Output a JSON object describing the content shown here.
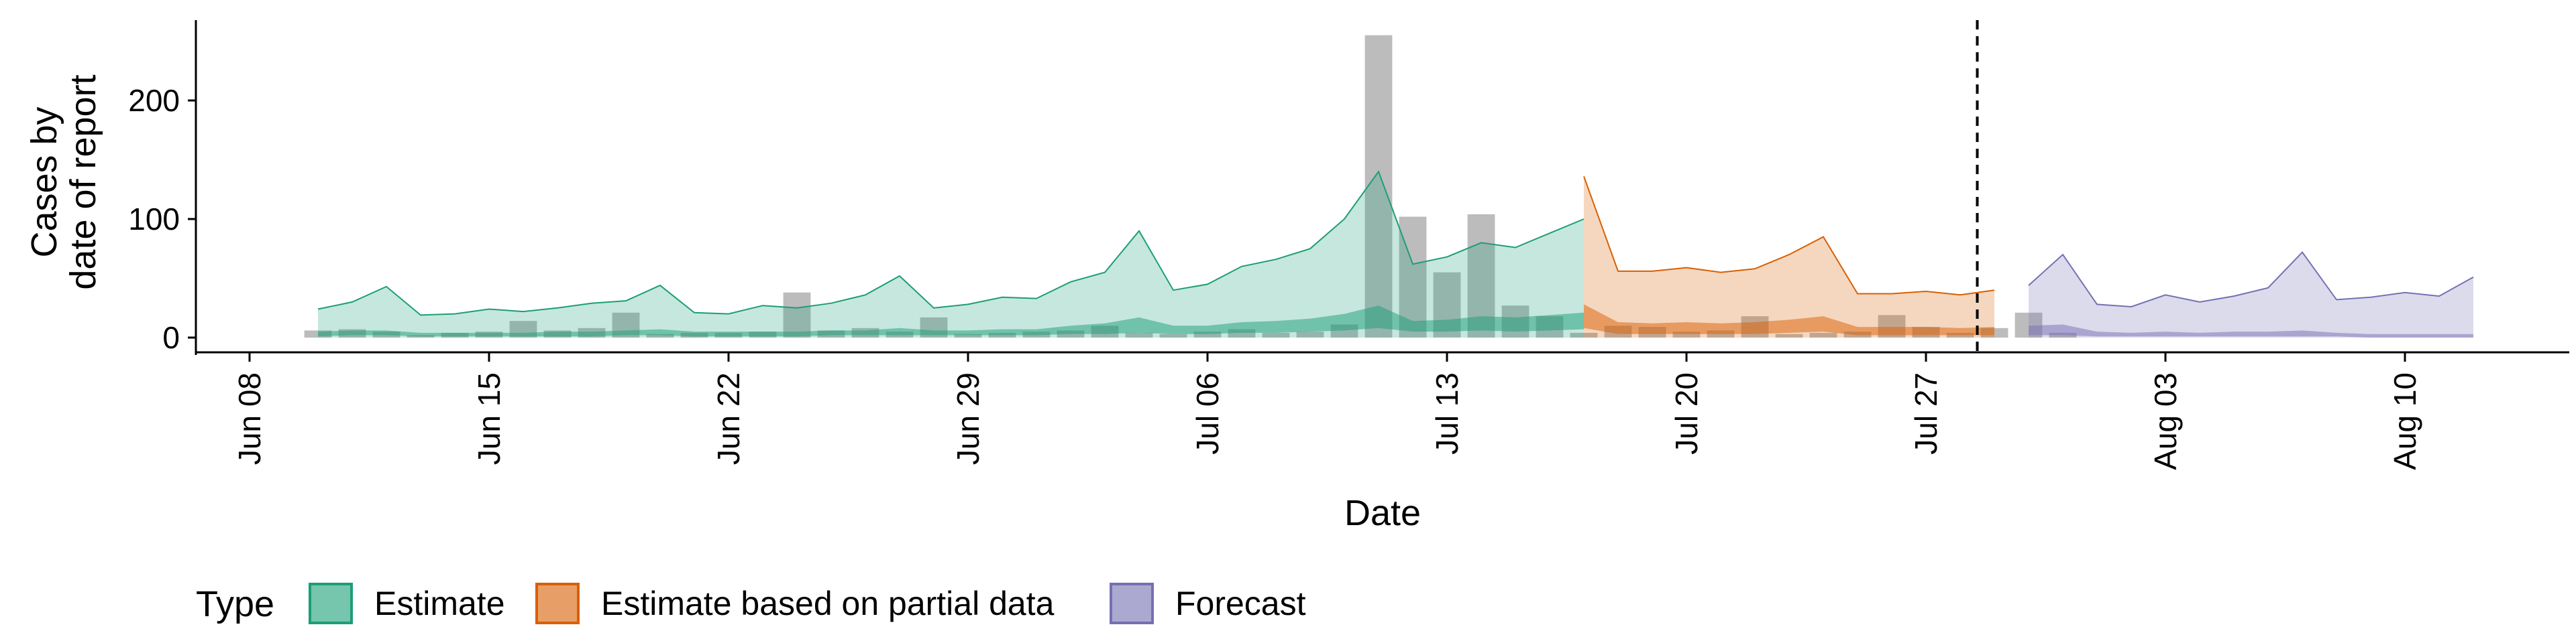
{
  "chart_data": {
    "type": "area",
    "title": "",
    "xlabel": "Date",
    "ylabel_lines": [
      "Cases by",
      "date of report"
    ],
    "ylim": [
      -12,
      270
    ],
    "xlim": [
      "2021-06-06",
      "2021-08-15"
    ],
    "x_ticks": [
      "Jun 08",
      "Jun 15",
      "Jun 22",
      "Jun 29",
      "Jul 06",
      "Jul 13",
      "Jul 20",
      "Jul 27",
      "Aug 03",
      "Aug 10"
    ],
    "x_tick_dates": [
      "2021-06-08",
      "2021-06-15",
      "2021-06-22",
      "2021-06-29",
      "2021-07-06",
      "2021-07-13",
      "2021-07-20",
      "2021-07-27",
      "2021-08-03",
      "2021-08-10"
    ],
    "y_ticks": [
      0,
      100,
      200
    ],
    "grid": false,
    "forecast_date": "2021-07-29",
    "legend": {
      "title": "Type",
      "position": "bottom",
      "entries": [
        "Estimate",
        "Estimate based on partial data",
        "Forecast"
      ]
    },
    "colors": {
      "estimate_line": "#1B9E77",
      "estimate_fill": "#1B9E77",
      "partial_line": "#D95F02",
      "partial_fill": "#D95F02",
      "forecast_line": "#7570B3",
      "forecast_fill": "#7570B3",
      "bars": "#a0a0a0",
      "forecast_marker": "#000000"
    },
    "reported_cases": {
      "start": "2021-06-10",
      "values": [
        6,
        7,
        5,
        2,
        4,
        5,
        14,
        6,
        8,
        21,
        3,
        4,
        4,
        5,
        38,
        6,
        8,
        5,
        17,
        3,
        4,
        5,
        6,
        10,
        4,
        3,
        5,
        7,
        4,
        5,
        11,
        255,
        102,
        55,
        104,
        27,
        18,
        4,
        10,
        9,
        5,
        6,
        18,
        3,
        4,
        5,
        19,
        9,
        4,
        8,
        21,
        4
      ]
    },
    "series": [
      {
        "name": "Estimate",
        "start": "2021-06-10",
        "outer_upper": [
          24,
          30,
          43,
          19,
          20,
          24,
          22,
          25,
          29,
          31,
          44,
          21,
          20,
          27,
          25,
          29,
          36,
          52,
          25,
          28,
          34,
          33,
          47,
          55,
          90,
          40,
          45,
          60,
          66,
          75,
          100,
          140,
          62,
          68,
          80,
          76,
          88,
          100
        ],
        "inner_upper": [
          5,
          6,
          6,
          4,
          4,
          4,
          4,
          5,
          5,
          6,
          7,
          5,
          5,
          5,
          5,
          6,
          6,
          8,
          6,
          6,
          7,
          7,
          10,
          12,
          17,
          10,
          10,
          13,
          14,
          16,
          20,
          27,
          14,
          15,
          18,
          17,
          19,
          21
        ],
        "inner_lower": [
          1,
          2,
          2,
          1,
          1,
          1,
          1,
          1,
          1,
          2,
          2,
          1,
          1,
          1,
          1,
          2,
          2,
          2,
          2,
          2,
          2,
          2,
          3,
          3,
          4,
          3,
          3,
          4,
          4,
          5,
          6,
          8,
          5,
          5,
          6,
          5,
          6,
          7
        ],
        "outer_lower": [
          0,
          0,
          0,
          0,
          0,
          0,
          0,
          0,
          0,
          0,
          0,
          0,
          0,
          0,
          0,
          0,
          0,
          0,
          0,
          0,
          0,
          0,
          0,
          0,
          0,
          0,
          0,
          0,
          0,
          0,
          0,
          0,
          0,
          0,
          0,
          0,
          0,
          0
        ]
      },
      {
        "name": "Estimate based on partial data",
        "start": "2021-07-17",
        "outer_upper": [
          136,
          56,
          56,
          59,
          55,
          58,
          70,
          85,
          37,
          37,
          39,
          36,
          40
        ],
        "inner_upper": [
          28,
          13,
          12,
          13,
          12,
          13,
          15,
          18,
          9,
          9,
          9,
          8,
          9
        ],
        "inner_lower": [
          8,
          3,
          3,
          3,
          3,
          3,
          4,
          5,
          2,
          2,
          2,
          2,
          2
        ],
        "outer_lower": [
          0,
          0,
          0,
          0,
          0,
          0,
          0,
          0,
          0,
          0,
          0,
          0,
          0
        ]
      },
      {
        "name": "Forecast",
        "start": "2021-07-30",
        "outer_upper": [
          44,
          70,
          28,
          26,
          36,
          30,
          35,
          42,
          72,
          32,
          34,
          38,
          35,
          51
        ],
        "inner_upper": [
          10,
          11,
          5,
          4,
          5,
          4,
          5,
          5,
          6,
          4,
          3,
          3,
          3,
          3
        ],
        "inner_lower": [
          2,
          2,
          1,
          1,
          1,
          1,
          1,
          1,
          1,
          1,
          0,
          0,
          0,
          0
        ],
        "outer_lower": [
          0,
          0,
          0,
          0,
          0,
          0,
          0,
          0,
          0,
          0,
          0,
          0,
          0,
          0
        ]
      }
    ]
  }
}
